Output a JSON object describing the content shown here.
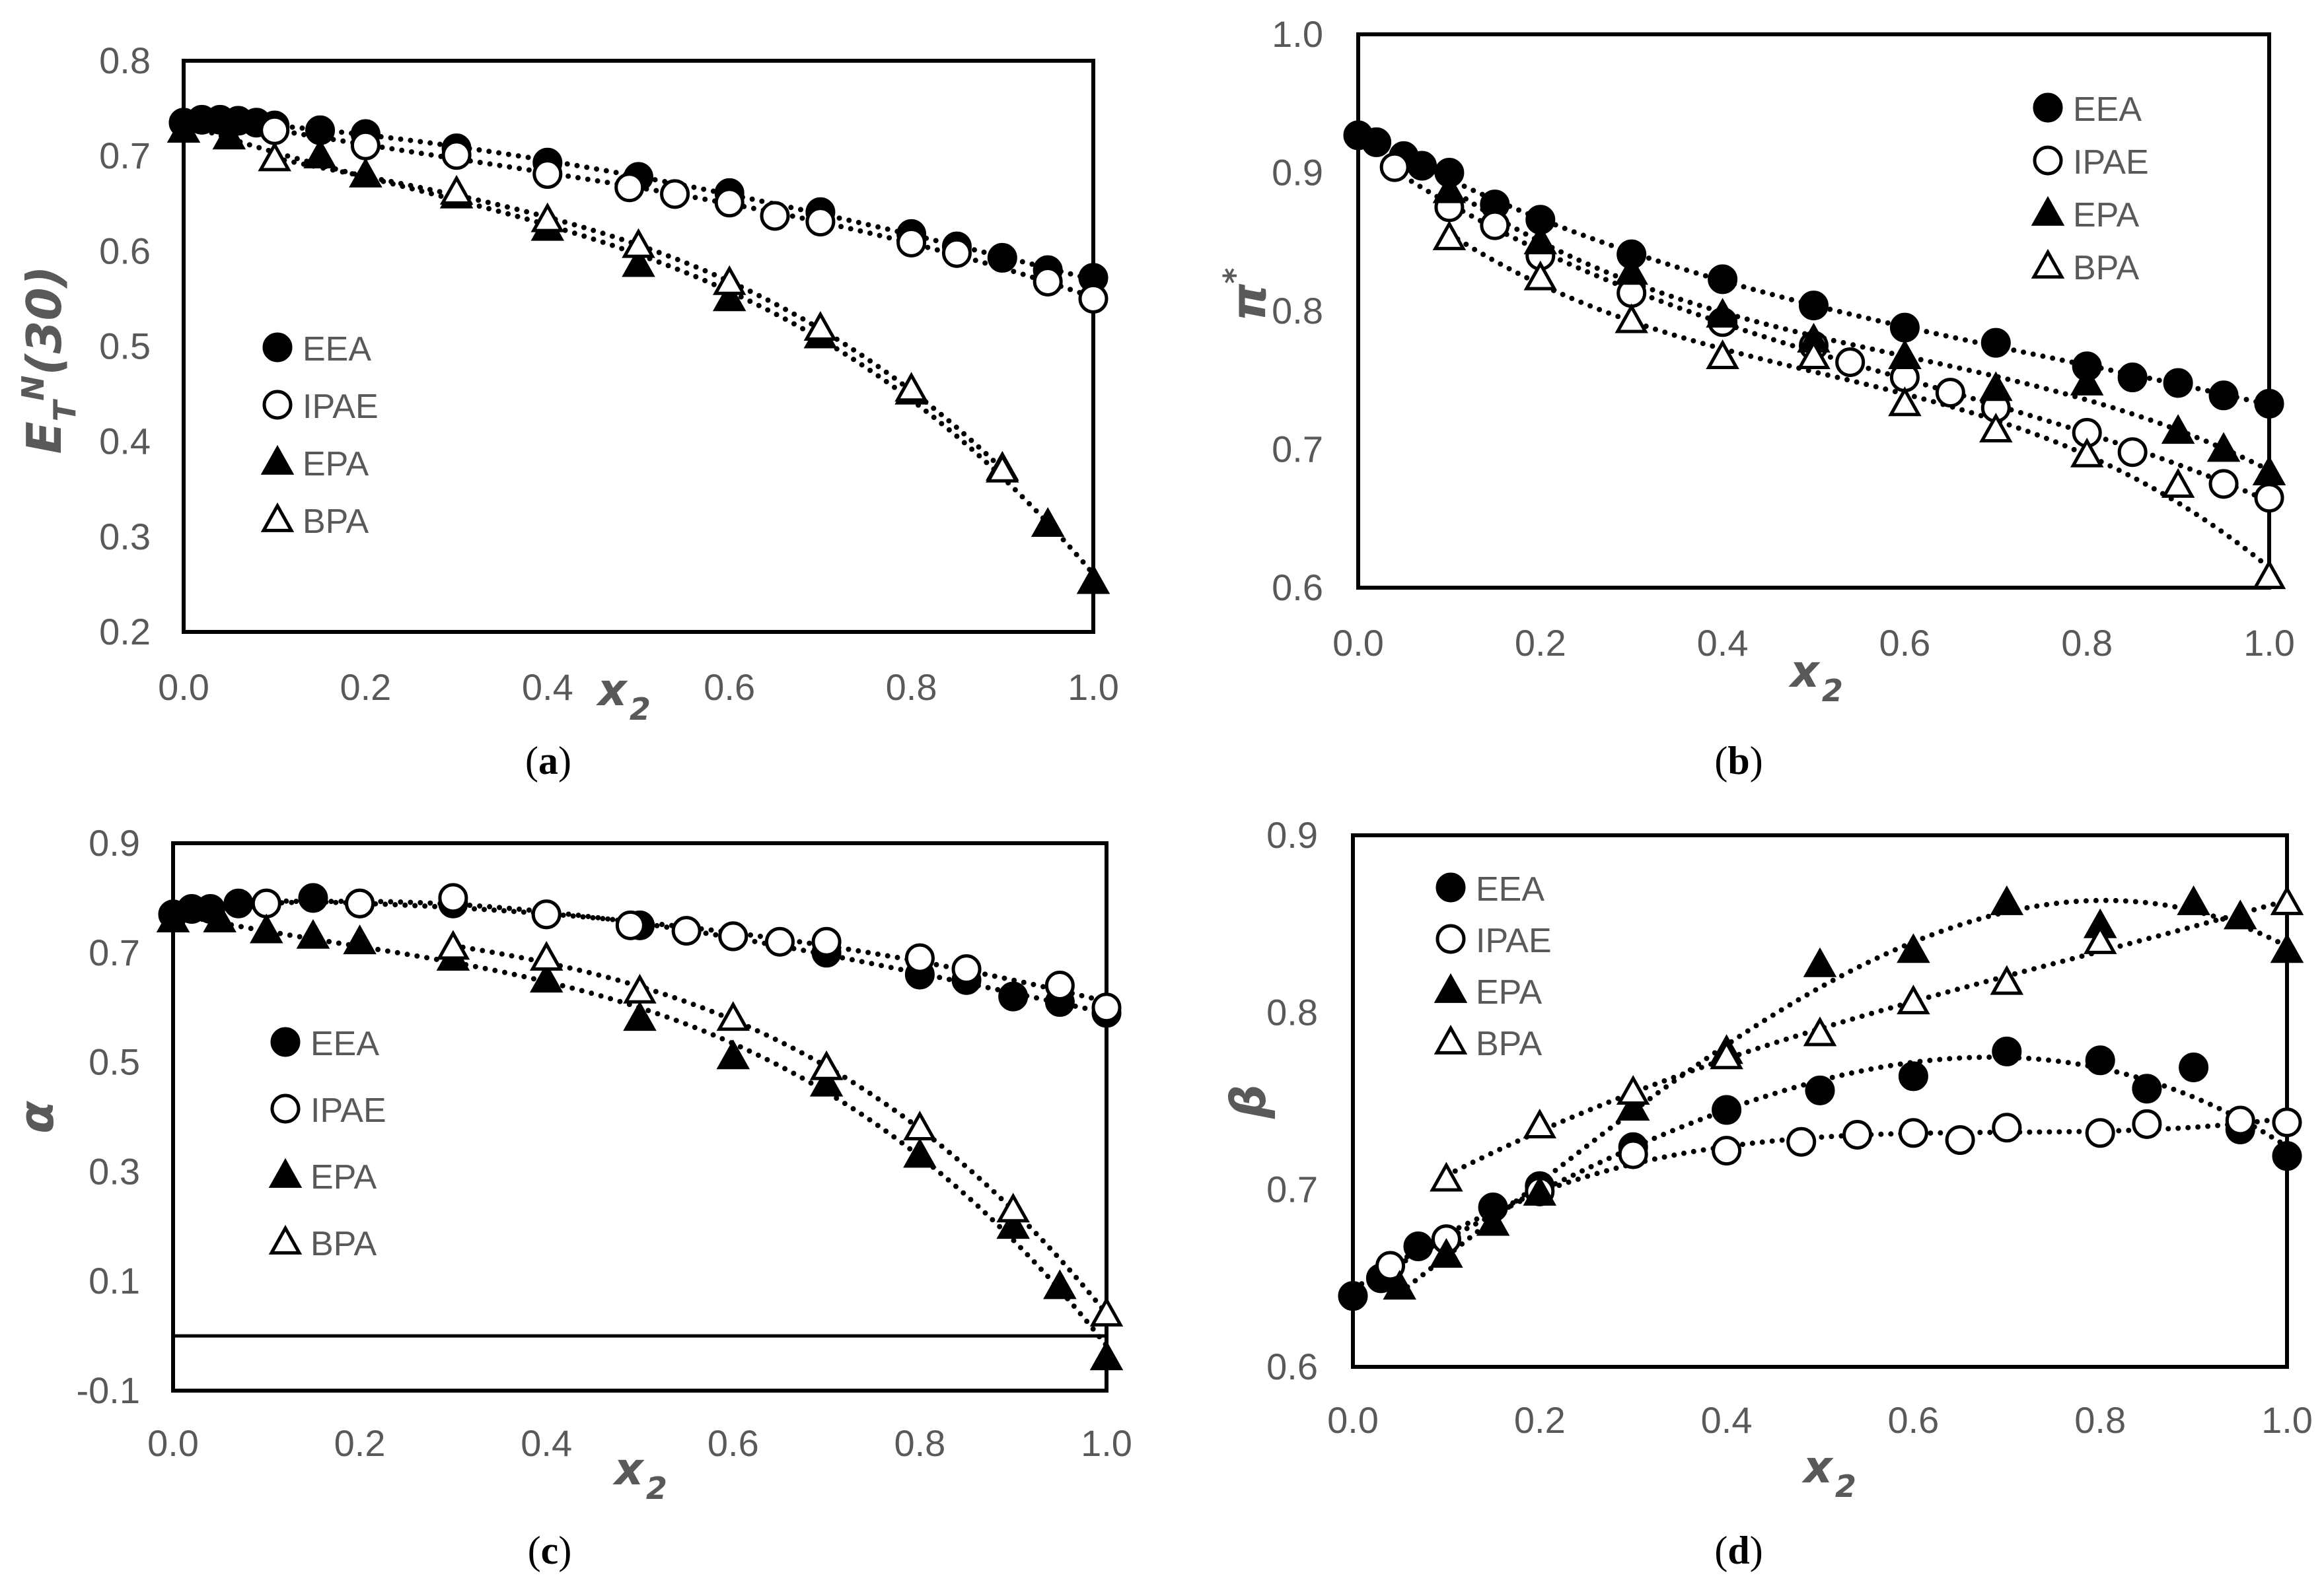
{
  "chart_data": [
    {
      "type": "scatter",
      "panel_caption": {
        "open": "(",
        "letter": "a",
        "close": ")"
      },
      "xlabel": {
        "main": "x",
        "sub": "2"
      },
      "ylabel": {
        "main": "E",
        "sub": "T",
        "sup": "N",
        "rest": "(30)"
      },
      "xlim": [
        0.0,
        1.0
      ],
      "ylim": [
        0.2,
        0.8
      ],
      "xticks": [
        "0.0",
        "0.2",
        "0.4",
        "0.6",
        "0.8",
        "1.0"
      ],
      "xtick_values": [
        0.0,
        0.2,
        0.4,
        0.6,
        0.8,
        1.0
      ],
      "yticks": [
        "0.2",
        "0.3",
        "0.4",
        "0.5",
        "0.6",
        "0.7",
        "0.8"
      ],
      "ytick_values": [
        0.2,
        0.3,
        0.4,
        0.5,
        0.6,
        0.7,
        0.8
      ],
      "legend_position": "center-left",
      "series": [
        {
          "name": "EEA",
          "marker": "filled-circle",
          "x": [
            0.0,
            0.02,
            0.04,
            0.06,
            0.08,
            0.1,
            0.15,
            0.2,
            0.3,
            0.4,
            0.5,
            0.6,
            0.7,
            0.8,
            0.85,
            0.9,
            0.95,
            1.0
          ],
          "y": [
            0.735,
            0.738,
            0.738,
            0.737,
            0.735,
            0.732,
            0.727,
            0.723,
            0.708,
            0.693,
            0.678,
            0.661,
            0.641,
            0.618,
            0.605,
            0.593,
            0.58,
            0.572
          ]
        },
        {
          "name": "IPAE",
          "marker": "open-circle",
          "x": [
            0.1,
            0.2,
            0.3,
            0.4,
            0.49,
            0.54,
            0.6,
            0.65,
            0.7,
            0.8,
            0.85,
            0.95,
            1.0
          ],
          "y": [
            0.727,
            0.711,
            0.701,
            0.681,
            0.667,
            0.66,
            0.651,
            0.637,
            0.631,
            0.609,
            0.598,
            0.568,
            0.55
          ]
        },
        {
          "name": "EPA",
          "marker": "filled-triangle",
          "x": [
            0.0,
            0.05,
            0.15,
            0.2,
            0.3,
            0.4,
            0.5,
            0.6,
            0.7,
            0.8,
            0.9,
            0.95,
            1.0
          ],
          "y": [
            0.727,
            0.72,
            0.7,
            0.68,
            0.658,
            0.624,
            0.586,
            0.55,
            0.511,
            0.452,
            0.372,
            0.313,
            0.253
          ]
        },
        {
          "name": "BPA",
          "marker": "open-triangle",
          "x": [
            0.1,
            0.3,
            0.4,
            0.5,
            0.6,
            0.7,
            0.8,
            0.9
          ],
          "y": [
            0.697,
            0.662,
            0.633,
            0.606,
            0.567,
            0.519,
            0.455,
            0.37
          ]
        }
      ]
    },
    {
      "type": "scatter",
      "panel_caption": {
        "open": "(",
        "letter": "b",
        "close": ")"
      },
      "xlabel": {
        "main": "x",
        "sub": "2"
      },
      "ylabel": {
        "main": "π",
        "sup": "*"
      },
      "xlim": [
        0.0,
        1.0
      ],
      "ylim": [
        0.6,
        1.0
      ],
      "xticks": [
        "0.0",
        "0.2",
        "0.4",
        "0.6",
        "0.8",
        "1.0"
      ],
      "xtick_values": [
        0.0,
        0.2,
        0.4,
        0.6,
        0.8,
        1.0
      ],
      "yticks": [
        "0.6",
        "0.7",
        "0.8",
        "0.9",
        "1.0"
      ],
      "ytick_values": [
        0.6,
        0.7,
        0.8,
        0.9,
        1.0
      ],
      "legend_position": "top-right",
      "series": [
        {
          "name": "EEA",
          "marker": "filled-circle",
          "x": [
            0.0,
            0.02,
            0.05,
            0.07,
            0.1,
            0.15,
            0.2,
            0.3,
            0.4,
            0.5,
            0.6,
            0.7,
            0.8,
            0.85,
            0.9,
            0.95,
            1.0
          ],
          "y": [
            0.927,
            0.922,
            0.912,
            0.905,
            0.9,
            0.877,
            0.866,
            0.841,
            0.823,
            0.804,
            0.788,
            0.777,
            0.76,
            0.752,
            0.748,
            0.739,
            0.733
          ]
        },
        {
          "name": "IPAE",
          "marker": "open-circle",
          "x": [
            0.04,
            0.1,
            0.15,
            0.2,
            0.3,
            0.4,
            0.5,
            0.54,
            0.6,
            0.65,
            0.7,
            0.8,
            0.85,
            0.95,
            1.0
          ],
          "y": [
            0.904,
            0.875,
            0.862,
            0.84,
            0.813,
            0.792,
            0.775,
            0.763,
            0.752,
            0.741,
            0.73,
            0.712,
            0.698,
            0.675,
            0.665
          ]
        },
        {
          "name": "EPA",
          "marker": "filled-triangle",
          "x": [
            0.1,
            0.2,
            0.3,
            0.4,
            0.5,
            0.6,
            0.7,
            0.8,
            0.9,
            0.95,
            1.0
          ],
          "y": [
            0.887,
            0.85,
            0.828,
            0.797,
            0.779,
            0.767,
            0.744,
            0.748,
            0.713,
            0.7,
            0.683
          ]
        },
        {
          "name": "BPA",
          "marker": "open-triangle",
          "x": [
            0.1,
            0.2,
            0.3,
            0.4,
            0.5,
            0.6,
            0.7,
            0.8,
            0.9,
            1.0
          ],
          "y": [
            0.853,
            0.824,
            0.793,
            0.767,
            0.767,
            0.733,
            0.714,
            0.696,
            0.674,
            0.608
          ]
        }
      ]
    },
    {
      "type": "scatter",
      "panel_caption": {
        "open": "(",
        "letter": "c",
        "close": ")"
      },
      "xlabel": {
        "main": "x",
        "sub": "2"
      },
      "ylabel": {
        "main": "α"
      },
      "xlim": [
        0.0,
        1.0
      ],
      "ylim": [
        -0.1,
        0.9
      ],
      "xticks": [
        "0.0",
        "0.2",
        "0.4",
        "0.6",
        "0.8",
        "1.0"
      ],
      "xtick_values": [
        0.0,
        0.2,
        0.4,
        0.6,
        0.8,
        1.0
      ],
      "yticks": [
        "-0.1",
        "0.1",
        "0.3",
        "0.5",
        "0.7",
        "0.9"
      ],
      "ytick_values": [
        -0.1,
        0.1,
        0.3,
        0.5,
        0.7,
        0.9
      ],
      "zero_line": true,
      "legend_position": "center-left",
      "series": [
        {
          "name": "EEA",
          "marker": "filled-circle",
          "x": [
            0.0,
            0.02,
            0.04,
            0.07,
            0.1,
            0.15,
            0.2,
            0.3,
            0.4,
            0.5,
            0.6,
            0.7,
            0.8,
            0.85,
            0.9,
            0.95,
            1.0
          ],
          "y": [
            0.77,
            0.78,
            0.78,
            0.79,
            0.79,
            0.8,
            0.79,
            0.79,
            0.77,
            0.75,
            0.73,
            0.7,
            0.66,
            0.65,
            0.62,
            0.61,
            0.59
          ]
        },
        {
          "name": "IPAE",
          "marker": "open-circle",
          "x": [
            0.1,
            0.2,
            0.3,
            0.4,
            0.49,
            0.55,
            0.6,
            0.65,
            0.7,
            0.8,
            0.85,
            0.95,
            1.0
          ],
          "y": [
            0.79,
            0.79,
            0.8,
            0.77,
            0.75,
            0.74,
            0.73,
            0.72,
            0.72,
            0.69,
            0.67,
            0.64,
            0.6
          ]
        },
        {
          "name": "EPA",
          "marker": "filled-triangle",
          "x": [
            0.0,
            0.05,
            0.1,
            0.15,
            0.2,
            0.3,
            0.4,
            0.5,
            0.6,
            0.7,
            0.8,
            0.9,
            0.95,
            1.0
          ],
          "y": [
            0.76,
            0.76,
            0.74,
            0.73,
            0.72,
            0.69,
            0.65,
            0.58,
            0.51,
            0.46,
            0.33,
            0.2,
            0.09,
            -0.04
          ]
        },
        {
          "name": "BPA",
          "marker": "open-triangle",
          "x": [
            0.3,
            0.4,
            0.5,
            0.6,
            0.7,
            0.8,
            0.9,
            1.0
          ],
          "y": [
            0.71,
            0.69,
            0.63,
            0.58,
            0.49,
            0.38,
            0.23,
            0.04
          ]
        }
      ]
    },
    {
      "type": "scatter",
      "panel_caption": {
        "open": "(",
        "letter": "d",
        "close": ")"
      },
      "xlabel": {
        "main": "x",
        "sub": "2"
      },
      "ylabel": {
        "main": "β"
      },
      "xlim": [
        0.0,
        1.0
      ],
      "ylim": [
        0.6,
        0.9
      ],
      "xticks": [
        "0.0",
        "0.2",
        "0.4",
        "0.6",
        "0.8",
        "1.0"
      ],
      "xtick_values": [
        0.0,
        0.2,
        0.4,
        0.6,
        0.8,
        1.0
      ],
      "yticks": [
        "0.6",
        "0.7",
        "0.8",
        "0.9"
      ],
      "ytick_values": [
        0.6,
        0.7,
        0.8,
        0.9
      ],
      "legend_position": "top-left",
      "series": [
        {
          "name": "EEA",
          "marker": "filled-circle",
          "x": [
            0.0,
            0.03,
            0.07,
            0.1,
            0.15,
            0.2,
            0.3,
            0.4,
            0.5,
            0.6,
            0.7,
            0.8,
            0.85,
            0.9,
            0.95,
            1.0
          ],
          "y": [
            0.64,
            0.65,
            0.668,
            0.672,
            0.69,
            0.702,
            0.724,
            0.745,
            0.756,
            0.764,
            0.778,
            0.773,
            0.757,
            0.769,
            0.734,
            0.719
          ]
        },
        {
          "name": "IPAE",
          "marker": "open-circle",
          "x": [
            0.04,
            0.1,
            0.2,
            0.3,
            0.4,
            0.48,
            0.54,
            0.6,
            0.65,
            0.7,
            0.8,
            0.85,
            0.95,
            1.0
          ],
          "y": [
            0.657,
            0.672,
            0.699,
            0.72,
            0.722,
            0.727,
            0.731,
            0.732,
            0.728,
            0.735,
            0.732,
            0.737,
            0.739,
            0.738
          ]
        },
        {
          "name": "EPA",
          "marker": "filled-triangle",
          "x": [
            0.05,
            0.1,
            0.15,
            0.2,
            0.3,
            0.4,
            0.5,
            0.6,
            0.7,
            0.8,
            0.9,
            0.95,
            1.0
          ],
          "y": [
            0.645,
            0.663,
            0.681,
            0.698,
            0.746,
            0.778,
            0.827,
            0.835,
            0.862,
            0.849,
            0.862,
            0.854,
            0.835
          ]
        },
        {
          "name": "BPA",
          "marker": "open-triangle",
          "x": [
            0.1,
            0.2,
            0.3,
            0.4,
            0.5,
            0.6,
            0.7,
            0.8,
            1.0
          ],
          "y": [
            0.706,
            0.736,
            0.755,
            0.775,
            0.788,
            0.806,
            0.817,
            0.84,
            0.862
          ]
        }
      ]
    }
  ]
}
